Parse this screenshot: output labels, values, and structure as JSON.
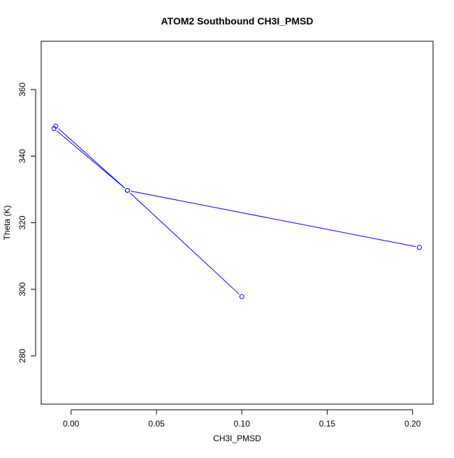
{
  "chart_data": {
    "type": "line",
    "title": "ATOM2 Southbound CH3I_PMSD",
    "xlabel": "CH3I_PMSD",
    "ylabel": "Theta (K)",
    "xlim": [
      -0.0175,
      0.212
    ],
    "ylim": [
      265.5,
      374.5
    ],
    "x_ticks": [
      0.0,
      0.05,
      0.1,
      0.15,
      0.2
    ],
    "x_tick_labels": [
      "0.00",
      "0.05",
      "0.10",
      "0.15",
      "0.20"
    ],
    "y_ticks": [
      280,
      300,
      320,
      340,
      360
    ],
    "y_tick_labels": [
      "280",
      "300",
      "320",
      "340",
      "360"
    ],
    "grid": false,
    "series": [
      {
        "color": "#0000ff",
        "marker": "open-circle",
        "points": [
          {
            "x": 0.1,
            "y": 297.8
          },
          {
            "x": 0.033,
            "y": 329.7
          },
          {
            "x": -0.009,
            "y": 349.0
          },
          {
            "x": -0.01,
            "y": 348.3
          },
          {
            "x": 0.033,
            "y": 329.7
          },
          {
            "x": 0.204,
            "y": 312.6
          }
        ]
      }
    ]
  }
}
